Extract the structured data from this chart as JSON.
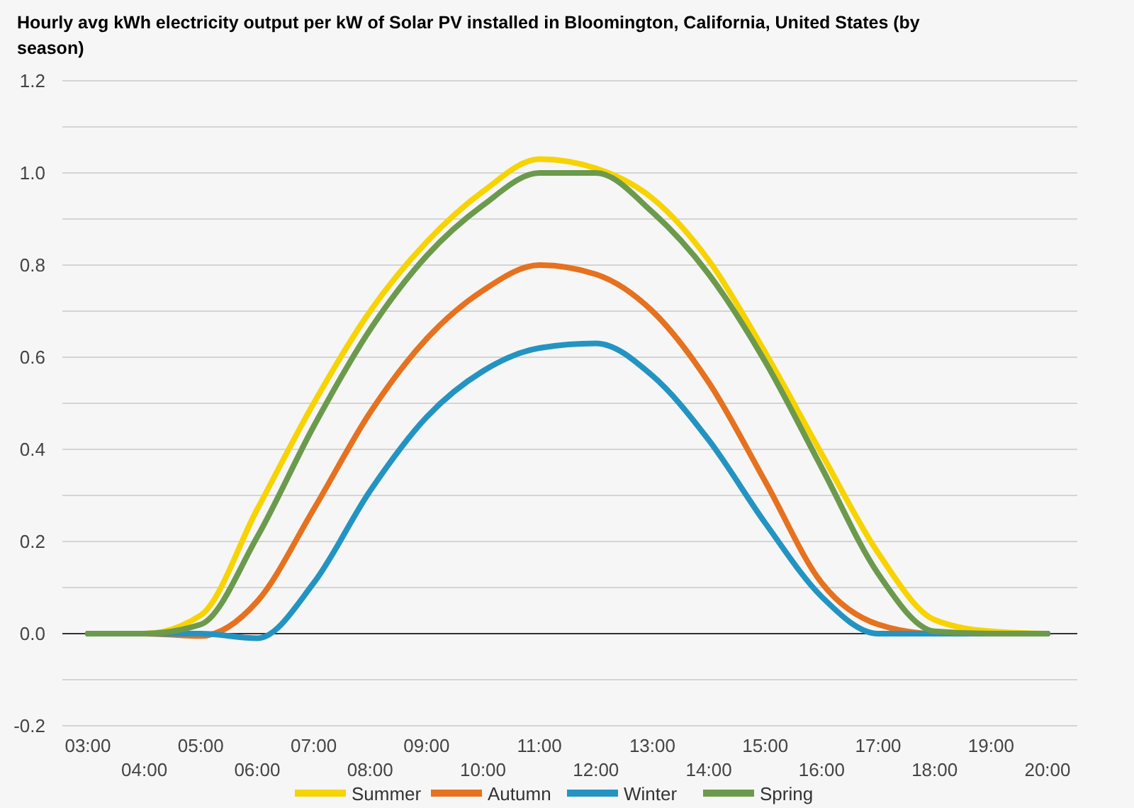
{
  "chart_data": {
    "type": "line",
    "title": "Hourly avg kWh electricity output per kW of Solar PV installed in Bloomington, California, United States (by season)",
    "categories": [
      "03:00",
      "04:00",
      "05:00",
      "06:00",
      "07:00",
      "08:00",
      "09:00",
      "10:00",
      "11:00",
      "12:00",
      "13:00",
      "14:00",
      "15:00",
      "16:00",
      "17:00",
      "18:00",
      "19:00",
      "20:00"
    ],
    "series": [
      {
        "name": "Summer",
        "color": "#f7d300",
        "values": [
          0,
          0,
          0.04,
          0.27,
          0.5,
          0.7,
          0.85,
          0.96,
          1.03,
          1.01,
          0.945,
          0.81,
          0.61,
          0.39,
          0.175,
          0.03,
          0.005,
          0
        ]
      },
      {
        "name": "Autumn",
        "color": "#e6711e",
        "values": [
          0,
          0,
          -0.005,
          0.07,
          0.27,
          0.48,
          0.64,
          0.745,
          0.8,
          0.78,
          0.7,
          0.545,
          0.33,
          0.11,
          0.02,
          0,
          0,
          0
        ]
      },
      {
        "name": "Winter",
        "color": "#2394c2",
        "values": [
          0,
          0,
          0,
          -0.01,
          0.11,
          0.31,
          0.47,
          0.57,
          0.62,
          0.63,
          0.56,
          0.42,
          0.24,
          0.08,
          0,
          0,
          0,
          0
        ]
      },
      {
        "name": "Spring",
        "color": "#6b9a4c",
        "values": [
          0,
          0,
          0.02,
          0.21,
          0.45,
          0.66,
          0.82,
          0.93,
          1.0,
          1.0,
          0.915,
          0.78,
          0.59,
          0.36,
          0.13,
          0.005,
          0,
          0
        ]
      }
    ],
    "ylim": [
      -0.2,
      1.2
    ],
    "yticks": [
      -0.2,
      {
        "value": -0.1,
        "label": null
      },
      "0.0",
      {
        "value": 0.1,
        "label": null
      },
      0.2,
      {
        "value": 0.3,
        "label": null
      },
      0.4,
      {
        "value": 0.5,
        "label": null
      },
      0.6,
      {
        "value": 0.7,
        "label": null
      },
      0.8,
      {
        "value": 0.9,
        "label": null
      },
      "1.0",
      {
        "value": 1.1,
        "label": null
      },
      1.2
    ],
    "grid": "y",
    "legend": "bottom",
    "line_style": "solid",
    "marker": "none"
  }
}
